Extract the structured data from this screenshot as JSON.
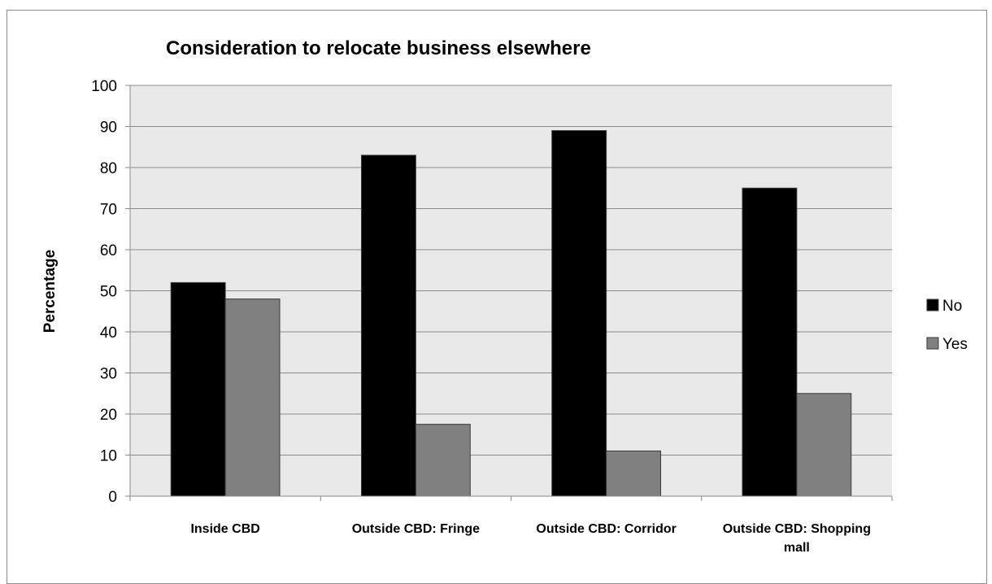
{
  "chart_data": {
    "type": "bar",
    "title": "Consideration to relocate business elsewhere",
    "xlabel": "",
    "ylabel": "Percentage",
    "ylim": [
      0,
      100
    ],
    "yticks": [
      0,
      10,
      20,
      30,
      40,
      50,
      60,
      70,
      80,
      90,
      100
    ],
    "categories": [
      [
        "Inside CBD"
      ],
      [
        "Outside CBD: Fringe"
      ],
      [
        "Outside CBD: Corridor"
      ],
      [
        "Outside CBD: Shopping",
        "mall"
      ]
    ],
    "series": [
      {
        "name": "No",
        "color": "#000000",
        "values": [
          52,
          83,
          89,
          75
        ]
      },
      {
        "name": "Yes",
        "color": "#808080",
        "values": [
          48,
          17.5,
          11,
          25
        ]
      }
    ],
    "grid": true,
    "plot_background": "#e9e9e9",
    "legend_position": "right"
  }
}
